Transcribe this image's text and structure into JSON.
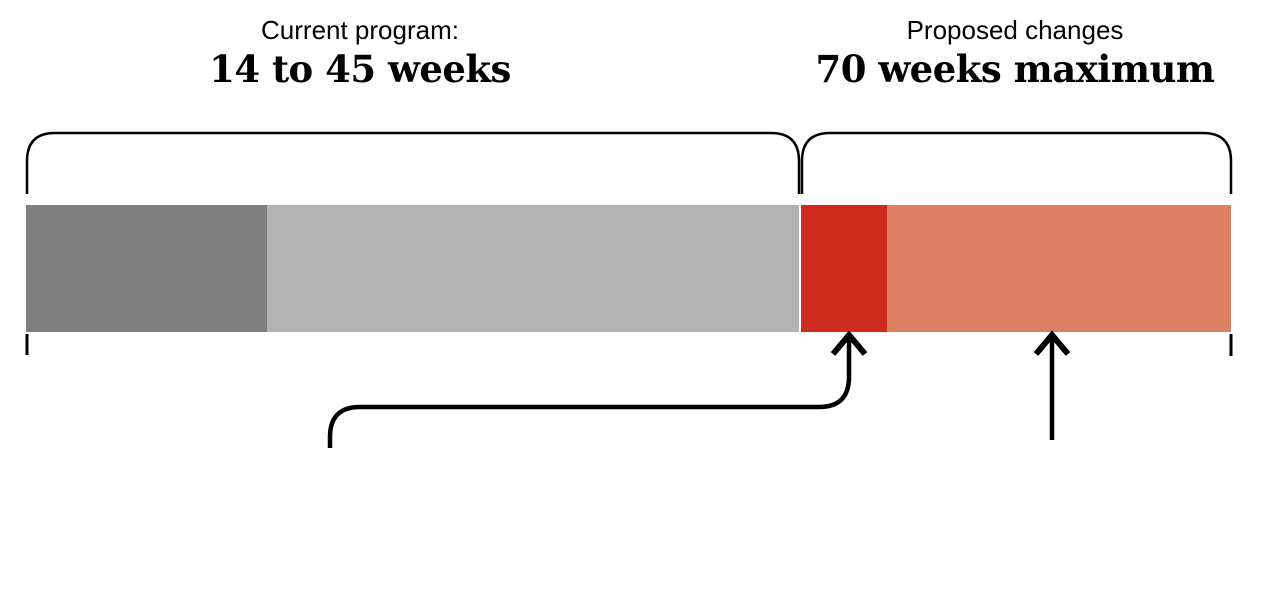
{
  "labels": {
    "current_title": "Current program:",
    "current_value": "14 to 45 weeks",
    "proposed_title": "Proposed changes",
    "proposed_value": "70 weeks maximum"
  },
  "colors": {
    "current_min_gray": "#7f7f7f",
    "current_max_gray": "#b2b2b2",
    "proposed_dark_red": "#cd2a20",
    "proposed_salmon": "#dd7f63",
    "line_black": "#000000"
  },
  "chart_data": {
    "type": "bar",
    "title": "Current program: 14 to 45 weeks vs Proposed changes 70 weeks maximum",
    "unit": "weeks",
    "axis_range_weeks": [
      0,
      70
    ],
    "grid": false,
    "legend": false,
    "segments": [
      {
        "name": "current-minimum",
        "weeks": 14,
        "span_weeks": [
          0,
          14
        ],
        "color": "#7f7f7f"
      },
      {
        "name": "current-maximum",
        "weeks": 31,
        "span_weeks": [
          14,
          45
        ],
        "color": "#b2b2b2"
      },
      {
        "name": "proposed-added-dark-red",
        "weeks": 5,
        "span_weeks": [
          45,
          50
        ],
        "color": "#cd2a20"
      },
      {
        "name": "proposed-added-salmon",
        "weeks": 20,
        "span_weeks": [
          50,
          70
        ],
        "color": "#dd7f63"
      }
    ],
    "groups": [
      {
        "label": "Current program: 14 to 45 weeks",
        "span_weeks": [
          0,
          45
        ],
        "bracket": "top"
      },
      {
        "label": "Proposed changes 70 weeks maximum",
        "span_weeks": [
          45,
          70
        ],
        "bracket": "top"
      }
    ],
    "annotations": [
      {
        "type": "curved-arrow",
        "from": "lower-left",
        "points_to_weeks": 48,
        "points_to_segment": "proposed-added-dark-red"
      },
      {
        "type": "straight-arrow",
        "from": "below",
        "points_to_weeks": 60,
        "points_to_segment": "proposed-added-salmon"
      }
    ]
  }
}
